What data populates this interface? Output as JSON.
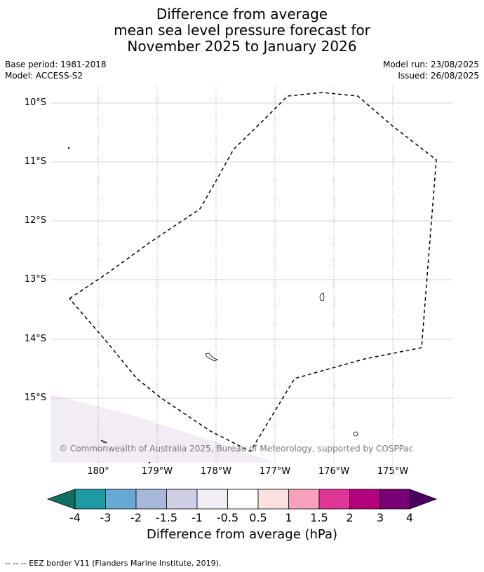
{
  "title": {
    "line1": "Difference from average",
    "line2": "mean sea level pressure forecast for",
    "line3": "November 2025 to January 2026"
  },
  "meta": {
    "base_period": "Base period: 1981-2018",
    "model": "Model: ACCESS-S2",
    "model_run": "Model run: 23/08/2025",
    "issued": "Issued: 26/08/2025"
  },
  "map": {
    "lat_labels": [
      "10°S",
      "11°S",
      "12°S",
      "13°S",
      "14°S",
      "15°S"
    ],
    "lon_labels": [
      "180°",
      "179°W",
      "178°W",
      "177°W",
      "176°W",
      "175°W"
    ],
    "copyright": "© Commonwealth of Australia 2025, Bureau of Meteorology, supported by COSPPac",
    "background_color": "#ffffff",
    "corner_fill_color": "#f2ecf4"
  },
  "colorbar": {
    "title": "Difference from average (hPa)",
    "labels": [
      "-4",
      "-3",
      "-2",
      "-1.5",
      "-1",
      "-0.5",
      "0.5",
      "1",
      "1.5",
      "2",
      "3",
      "4"
    ],
    "colors": [
      "#0e6f62",
      "#1f9aa3",
      "#66aad2",
      "#a6b9da",
      "#cecfe5",
      "#f2ecf4",
      "#ffffff",
      "#fde0e0",
      "#f89fbb",
      "#df3596",
      "#b3007d",
      "#7a0077",
      "#490060"
    ]
  },
  "legend": {
    "text": "--  --  -- EEZ border V11 (Flanders Marine Institute, 2019)."
  }
}
